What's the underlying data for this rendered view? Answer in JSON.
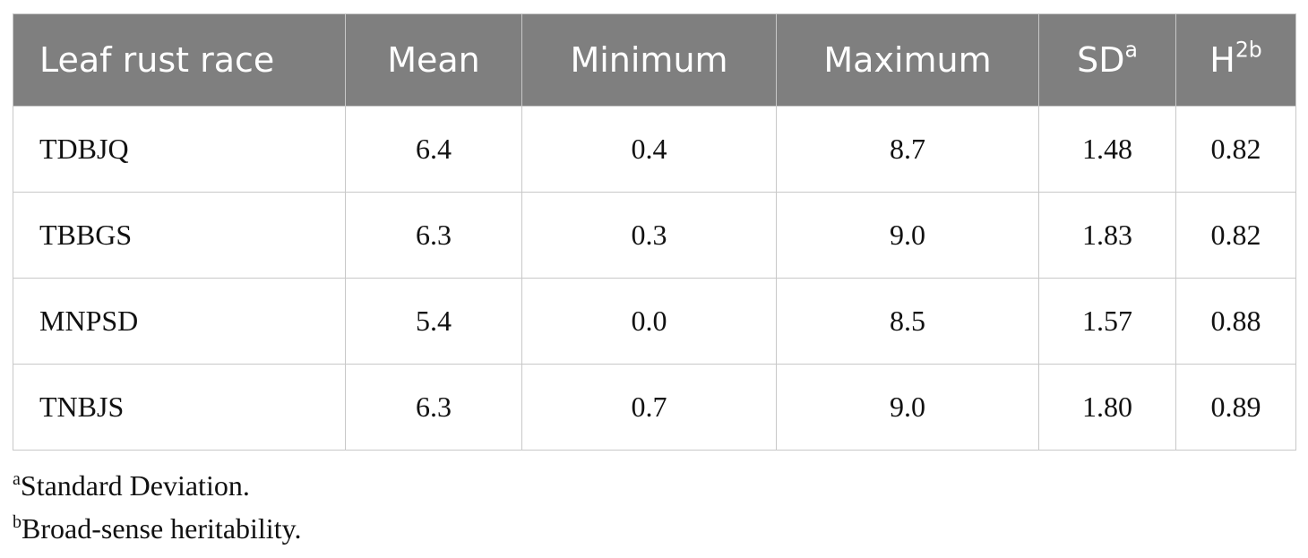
{
  "table": {
    "header": [
      {
        "text": "Leaf rust race"
      },
      {
        "text": "Mean"
      },
      {
        "text": "Minimum"
      },
      {
        "text": "Maximum"
      },
      {
        "text": "SD",
        "sup": "a"
      },
      {
        "text": "H",
        "sup": "2b"
      }
    ],
    "rows": [
      [
        "TDBJQ",
        "6.4",
        "0.4",
        "8.7",
        "1.48",
        "0.82"
      ],
      [
        "TBBGS",
        "6.3",
        "0.3",
        "9.0",
        "1.83",
        "0.82"
      ],
      [
        "MNPSD",
        "5.4",
        "0.0",
        "8.5",
        "1.57",
        "0.88"
      ],
      [
        "TNBJS",
        "6.3",
        "0.7",
        "9.0",
        "1.80",
        "0.89"
      ]
    ]
  },
  "footnotes": [
    {
      "mark": "a",
      "text": "Standard Deviation."
    },
    {
      "mark": "b",
      "text": "Broad-sense heritability."
    }
  ]
}
